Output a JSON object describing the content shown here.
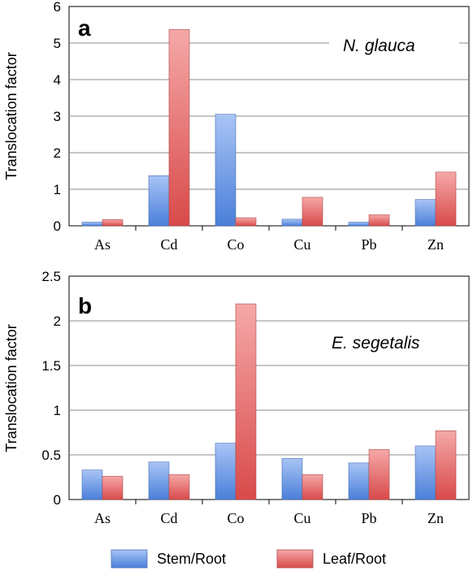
{
  "legend": {
    "position": "bottom",
    "items": [
      {
        "label": "Stem/Root",
        "color": "#6699ee"
      },
      {
        "label": "Leaf/Root",
        "color": "#e86a6a"
      }
    ]
  },
  "chart_data": [
    {
      "type": "bar",
      "panel_label": "a",
      "species": "N. glauca",
      "ylabel": "Translocation factor",
      "ylim": [
        0,
        6
      ],
      "yticks": [
        "0",
        "1",
        "2",
        "3",
        "4",
        "5",
        "6"
      ],
      "grid": true,
      "categories": [
        "As",
        "Cd",
        "Co",
        "Cu",
        "Pb",
        "Zn"
      ],
      "series": [
        {
          "name": "Stem/Root",
          "values": [
            0.1,
            1.37,
            3.05,
            0.18,
            0.1,
            0.72
          ]
        },
        {
          "name": "Leaf/Root",
          "values": [
            0.17,
            5.37,
            0.22,
            0.78,
            0.3,
            1.47
          ]
        }
      ]
    },
    {
      "type": "bar",
      "panel_label": "b",
      "species": "E. segetalis",
      "ylabel": "Translocation factor",
      "ylim": [
        0,
        2.5
      ],
      "yticks": [
        "0",
        "0.5",
        "1",
        "1.5",
        "2",
        "2.5"
      ],
      "grid": true,
      "categories": [
        "As",
        "Cd",
        "Co",
        "Cu",
        "Pb",
        "Zn"
      ],
      "series": [
        {
          "name": "Stem/Root",
          "values": [
            0.33,
            0.42,
            0.63,
            0.46,
            0.41,
            0.6
          ]
        },
        {
          "name": "Leaf/Root",
          "values": [
            0.26,
            0.28,
            2.19,
            0.28,
            0.56,
            0.77
          ]
        }
      ]
    }
  ]
}
